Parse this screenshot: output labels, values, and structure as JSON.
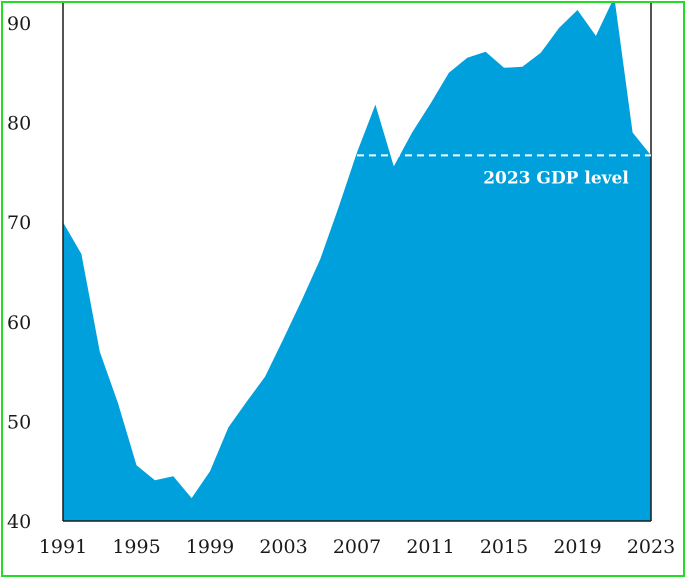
{
  "chart_data": {
    "type": "area",
    "title": "",
    "xlabel": "",
    "ylabel": "",
    "xlim": [
      1991,
      2023
    ],
    "ylim": [
      40,
      92
    ],
    "x_ticks": [
      "1991",
      "1995",
      "1999",
      "2003",
      "2007",
      "2011",
      "2015",
      "2019",
      "2023"
    ],
    "y_ticks": [
      "40",
      "50",
      "60",
      "70",
      "80",
      "90"
    ],
    "grid": false,
    "colors": {
      "fill": "#00a0dc",
      "annotation_line": "#ffffff",
      "axis": "#1a1a1a"
    },
    "series": [
      {
        "x": [
          1991,
          1992,
          1993,
          1994,
          1995,
          1996,
          1997,
          1998,
          1999,
          2000,
          2001,
          2002,
          2003,
          2004,
          2005,
          2006,
          2007,
          2008,
          2009,
          2010,
          2011,
          2012,
          2013,
          2014,
          2015,
          2016,
          2017,
          2018,
          2019,
          2020,
          2021,
          2022,
          2023
        ],
        "values": [
          70.0,
          66.8,
          57.0,
          51.8,
          45.6,
          44.1,
          44.5,
          42.3,
          45.0,
          49.4,
          52.0,
          54.5,
          58.3,
          62.2,
          66.3,
          71.5,
          77.0,
          81.8,
          75.6,
          79.0,
          81.9,
          85.0,
          86.5,
          87.1,
          85.5,
          85.6,
          87.0,
          89.5,
          91.3,
          88.7,
          92.6,
          79.0,
          76.7
        ]
      }
    ],
    "annotations": [
      {
        "text": "2023 GDP level",
        "value": 76.7,
        "x_start": 2007,
        "x_end": 2023
      }
    ]
  }
}
